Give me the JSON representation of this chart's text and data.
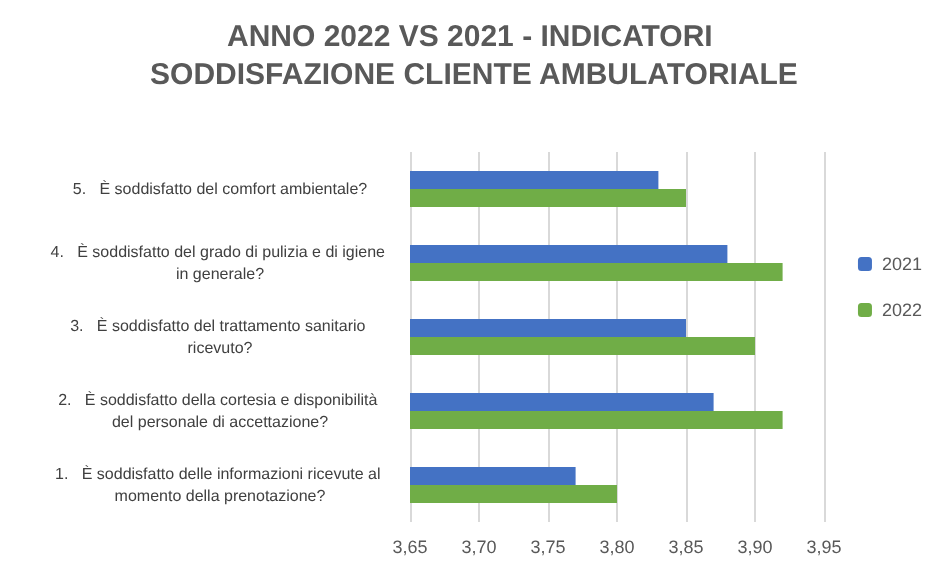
{
  "chart_data": {
    "type": "bar",
    "orientation": "horizontal",
    "title": "ANNO 2022 VS 2021 - INDICATORI SODDISFAZIONE CLIENTE AMBULATORIALE",
    "categories": [
      "5.   È soddisfatto del comfort ambientale?",
      "4.   È soddisfatto del grado di pulizia e di igiene in generale?",
      "3.   È soddisfatto del trattamento sanitario ricevuto?",
      "2.   È soddisfatto della cortesia e disponibilità del personale di accettazione?",
      "1.   È soddisfatto delle informazioni ricevute al momento della prenotazione?"
    ],
    "series": [
      {
        "name": "2021",
        "color": "#4472c4",
        "values": [
          3.83,
          3.88,
          3.85,
          3.87,
          3.77
        ]
      },
      {
        "name": "2022",
        "color": "#70ad47",
        "values": [
          3.85,
          3.92,
          3.9,
          3.92,
          3.8
        ]
      }
    ],
    "xlim": [
      3.65,
      3.95
    ],
    "xticks": [
      {
        "value": 3.65,
        "label": "3,65"
      },
      {
        "value": 3.7,
        "label": "3,70"
      },
      {
        "value": 3.75,
        "label": "3,75"
      },
      {
        "value": 3.8,
        "label": "3,80"
      },
      {
        "value": 3.85,
        "label": "3,85"
      },
      {
        "value": 3.9,
        "label": "3,90"
      },
      {
        "value": 3.95,
        "label": "3,95"
      }
    ],
    "grid": "x",
    "legend": "right"
  }
}
